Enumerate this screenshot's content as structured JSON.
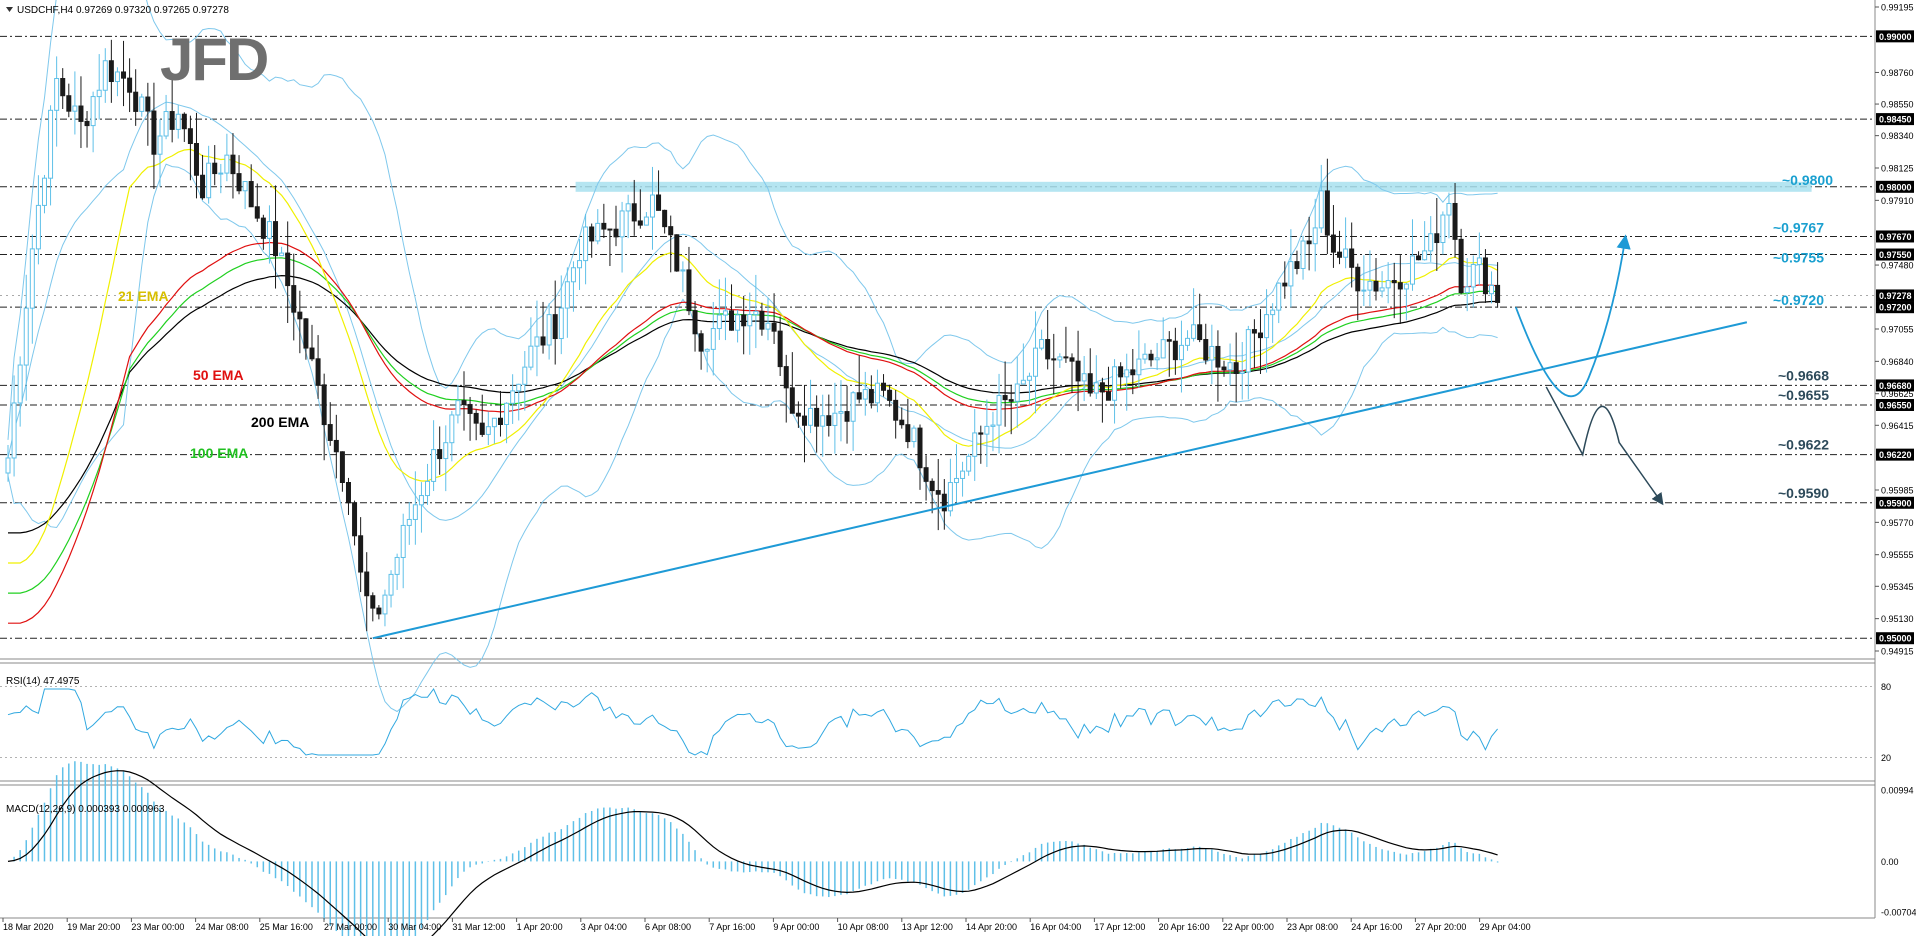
{
  "header": {
    "symbol_label": "USDCHF,H4",
    "ohlc_label": "0.97269 0.97320 0.97265 0.97278"
  },
  "logo": {
    "text": "JFD"
  },
  "colors": {
    "bull_candle": "#5fc0e8",
    "bear_candle": "#1a1a1a",
    "ema21": "#f0f000",
    "ema50": "#e01010",
    "ema100": "#20d020",
    "ema200": "#000000",
    "bollinger": "#7fc8ec",
    "trendline": "#1e9ad6",
    "resistance_band": "#a8e0ee",
    "level_label": "#1aa0d0",
    "support_label": "#2d4a5a",
    "rsi_line": "#30a8e0",
    "macd_hist": "#5fc0e8",
    "macd_signal": "#000000"
  },
  "icons": {
    "menu": "triangle-down-icon"
  },
  "annotations": {
    "ema21_label": "21 EMA",
    "ema50_label": "50 EMA",
    "ema100_label": "100 EMA",
    "ema200_label": "200 EMA"
  },
  "levels": {
    "resistance": [
      "~0.9800",
      "~0.9767",
      "~0.9755",
      "~0.9720"
    ],
    "support": [
      "~0.9668",
      "~0.9655",
      "~0.9622",
      "~0.9590"
    ]
  },
  "rsi_panel": {
    "label": "RSI(14) 47.4975",
    "ticks": [
      "80",
      "20"
    ]
  },
  "macd_panel": {
    "label": "MACD(12,26,9) 0.000393 0.000963",
    "ticks": [
      "0.00994",
      "0.00",
      "-0.00704"
    ]
  },
  "chart_data": {
    "type": "candlestick",
    "title": "USDCHF,H4",
    "ylim": [
      0.94915,
      0.99195
    ],
    "price_ticks": [
      "0.99195",
      "0.98760",
      "0.98550",
      "0.98340",
      "0.98125",
      "0.97910",
      "0.97480",
      "0.97055",
      "0.96840",
      "0.96625",
      "0.96415",
      "0.95985",
      "0.95770",
      "0.95555",
      "0.95345",
      "0.95130",
      "0.94915"
    ],
    "highlighted_prices": [
      "0.99000",
      "0.98450",
      "0.98000",
      "0.97670",
      "0.97550",
      "0.97278",
      "0.97200",
      "0.96680",
      "0.96550",
      "0.96220",
      "0.95900",
      "0.95000"
    ],
    "x_labels": [
      "18 Mar 2020",
      "19 Mar 20:00",
      "23 Mar 00:00",
      "24 Mar 08:00",
      "25 Mar 16:00",
      "27 Mar 00:00",
      "30 Mar 04:00",
      "31 Mar 12:00",
      "1 Apr 20:00",
      "3 Apr 04:00",
      "6 Apr 08:00",
      "7 Apr 16:00",
      "9 Apr 00:00",
      "10 Apr 08:00",
      "13 Apr 12:00",
      "14 Apr 20:00",
      "16 Apr 04:00",
      "17 Apr 12:00",
      "20 Apr 16:00",
      "22 Apr 00:00",
      "23 Apr 08:00",
      "24 Apr 16:00",
      "27 Apr 20:00",
      "29 Apr 04:00"
    ],
    "horizontal_levels": [
      0.99,
      0.9845,
      0.98,
      0.9767,
      0.9755,
      0.972,
      0.9668,
      0.9655,
      0.9622,
      0.959,
      0.95
    ],
    "path_keypoints": [
      [
        0,
        0.962
      ],
      [
        4,
        0.976
      ],
      [
        8,
        0.987
      ],
      [
        12,
        0.984
      ],
      [
        16,
        0.988
      ],
      [
        20,
        0.987
      ],
      [
        24,
        0.983
      ],
      [
        28,
        0.985
      ],
      [
        32,
        0.98
      ],
      [
        36,
        0.982
      ],
      [
        40,
        0.979
      ],
      [
        44,
        0.976
      ],
      [
        48,
        0.971
      ],
      [
        52,
        0.965
      ],
      [
        56,
        0.96
      ],
      [
        58,
        0.954
      ],
      [
        60,
        0.951
      ],
      [
        62,
        0.953
      ],
      [
        66,
        0.958
      ],
      [
        70,
        0.962
      ],
      [
        74,
        0.965
      ],
      [
        78,
        0.963
      ],
      [
        82,
        0.966
      ],
      [
        86,
        0.969
      ],
      [
        90,
        0.971
      ],
      [
        94,
        0.976
      ],
      [
        98,
        0.977
      ],
      [
        102,
        0.978
      ],
      [
        106,
        0.979
      ],
      [
        110,
        0.975
      ],
      [
        114,
        0.97
      ],
      [
        118,
        0.971
      ],
      [
        122,
        0.972
      ],
      [
        126,
        0.971
      ],
      [
        128,
        0.966
      ],
      [
        132,
        0.965
      ],
      [
        136,
        0.965
      ],
      [
        140,
        0.966
      ],
      [
        144,
        0.966
      ],
      [
        148,
        0.964
      ],
      [
        152,
        0.9605
      ],
      [
        154,
        0.9595
      ],
      [
        158,
        0.962
      ],
      [
        162,
        0.965
      ],
      [
        166,
        0.966
      ],
      [
        170,
        0.969
      ],
      [
        174,
        0.968
      ],
      [
        178,
        0.966
      ],
      [
        182,
        0.967
      ],
      [
        186,
        0.968
      ],
      [
        190,
        0.969
      ],
      [
        194,
        0.97
      ],
      [
        198,
        0.969
      ],
      [
        202,
        0.968
      ],
      [
        206,
        0.971
      ],
      [
        210,
        0.974
      ],
      [
        214,
        0.976
      ],
      [
        216,
        0.979
      ],
      [
        218,
        0.976
      ],
      [
        222,
        0.974
      ],
      [
        226,
        0.9735
      ],
      [
        230,
        0.9745
      ],
      [
        234,
        0.976
      ],
      [
        237,
        0.9795
      ],
      [
        239,
        0.974
      ],
      [
        242,
        0.9745
      ],
      [
        245,
        0.9728
      ]
    ],
    "ema_start_end": {
      "ema21": [
        0.955,
        0.974
      ],
      "ema50": [
        0.951,
        0.9725
      ],
      "ema100": [
        0.953,
        0.971
      ],
      "ema200": [
        0.957,
        0.969
      ]
    },
    "rsi_range": [
      20,
      80
    ],
    "macd_range": [
      -0.00704,
      0.00994
    ],
    "trendline": [
      [
        60,
        0.95
      ],
      [
        286,
        0.971
      ]
    ],
    "resistance_zone": [
      [
        95,
        0.98
      ],
      [
        295,
        0.98
      ]
    ],
    "scenario_up": {
      "from": [
        248,
        0.972
      ],
      "trough": [
        256,
        0.968
      ],
      "to": [
        266,
        0.9766
      ]
    },
    "scenario_down": {
      "from": [
        253,
        0.9667
      ],
      "mid": [
        262,
        0.9656
      ],
      "to": [
        272,
        0.959
      ]
    }
  }
}
